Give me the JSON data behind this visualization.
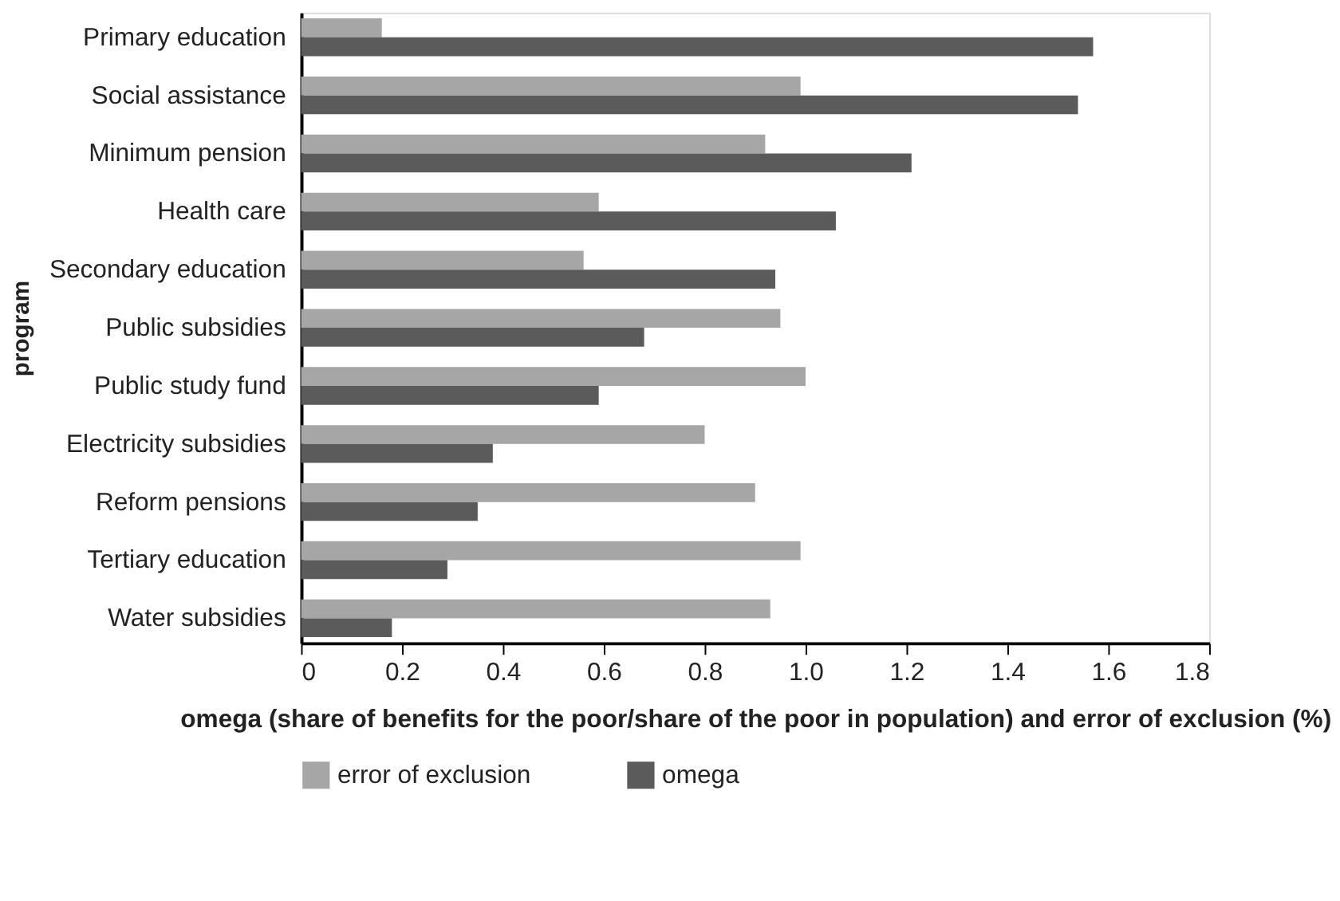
{
  "chart_data": {
    "type": "bar",
    "orientation": "horizontal",
    "xlabel": "omega (share of benefits for the poor/share of the poor in population) and error of exclusion (%)",
    "ylabel": "program",
    "categories": [
      "Primary education",
      "Social assistance",
      "Minimum pension",
      "Health care",
      "Secondary education",
      "Public subsidies",
      "Public study fund",
      "Electricity subsidies",
      "Reform pensions",
      "Tertiary education",
      "Water subsidies"
    ],
    "series": [
      {
        "name": "error of exclusion",
        "color": "#a6a6a6",
        "values": [
          0.16,
          0.99,
          0.92,
          0.59,
          0.56,
          0.95,
          1.0,
          0.8,
          0.9,
          0.99,
          0.93
        ]
      },
      {
        "name": "omega",
        "color": "#5b5b5b",
        "values": [
          1.57,
          1.54,
          1.21,
          1.06,
          0.94,
          0.68,
          0.59,
          0.38,
          0.35,
          0.29,
          0.18
        ]
      }
    ],
    "xlim": [
      0,
      1.8
    ],
    "xticks": [
      0,
      0.2,
      0.4,
      0.6,
      0.8,
      {
        "value": 1,
        "label": "1.0"
      },
      1.2,
      1.4,
      1.6,
      1.8
    ],
    "grid": false,
    "legend": "bottom"
  }
}
